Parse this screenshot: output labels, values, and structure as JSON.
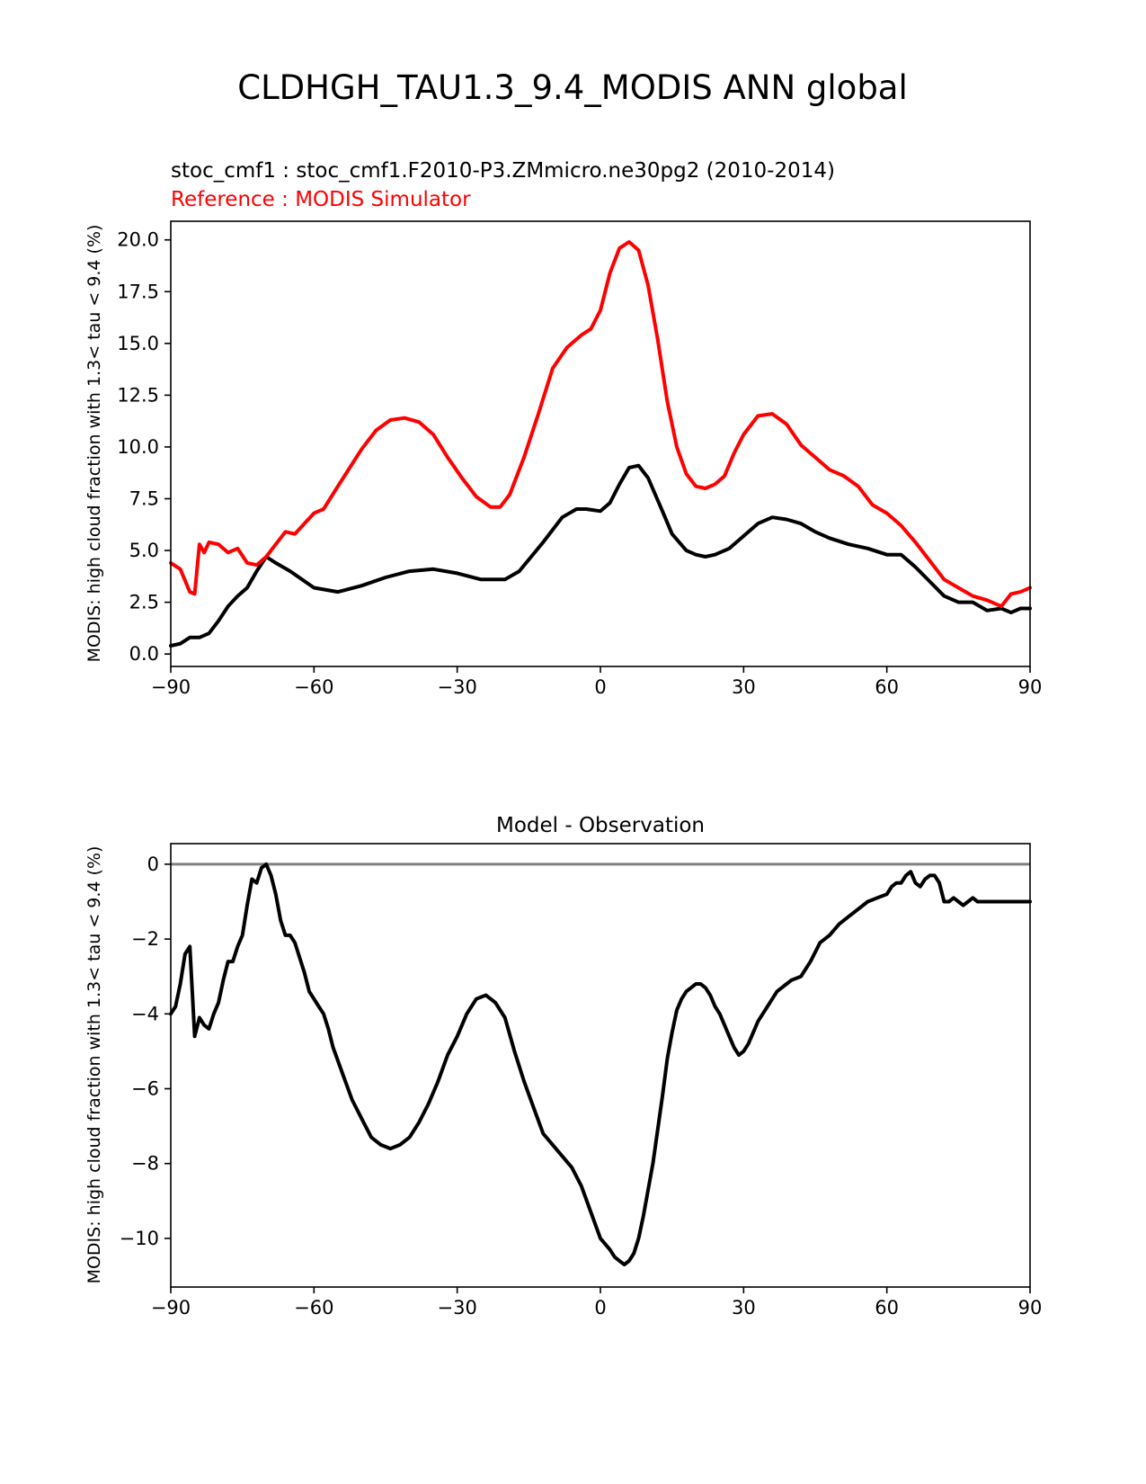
{
  "figure_title": "CLDHGH_TAU1.3_9.4_MODIS ANN global",
  "colors": {
    "test": "#000000",
    "reference": "#ff0000",
    "zero_line": "#808080",
    "axes": "#000000"
  },
  "chart_data": [
    {
      "type": "line",
      "title": "",
      "subtitle_test": "stoc_cmf1 : stoc_cmf1.F2010-P3.ZMmicro.ne30pg2 (2010-2014)",
      "subtitle_reference": "Reference : MODIS Simulator",
      "xlabel": "",
      "ylabel": "MODIS: high cloud fraction with 1.3< tau < 9.4 (%)",
      "xlim": [
        -90,
        90
      ],
      "ylim": [
        -0.6,
        20.9
      ],
      "xticks": [
        -90,
        -60,
        -30,
        0,
        30,
        60,
        90
      ],
      "xtick_labels": [
        "−90",
        "−60",
        "−30",
        "0",
        "30",
        "60",
        "90"
      ],
      "yticks": [
        0,
        2.5,
        5,
        7.5,
        10,
        12.5,
        15,
        17.5,
        20
      ],
      "ytick_labels": [
        "0.0",
        "2.5",
        "5.0",
        "7.5",
        "10.0",
        "12.5",
        "15.0",
        "17.5",
        "20.0"
      ],
      "grid": false,
      "series": [
        {
          "color": "#000000",
          "x": [
            -90,
            -88,
            -86,
            -84,
            -82,
            -80,
            -78,
            -76,
            -74,
            -72,
            -70,
            -68,
            -65,
            -60,
            -55,
            -50,
            -45,
            -40,
            -35,
            -30,
            -25,
            -20,
            -17,
            -12,
            -8,
            -5,
            -3,
            0,
            2,
            4,
            6,
            8,
            10,
            13,
            15,
            18,
            20,
            22,
            24,
            27,
            30,
            33,
            36,
            39,
            42,
            45,
            48,
            52,
            56,
            60,
            63,
            66,
            69,
            72,
            75,
            78,
            81,
            84,
            86,
            88,
            90
          ],
          "y": [
            0.4,
            0.5,
            0.8,
            0.8,
            1.0,
            1.6,
            2.3,
            2.8,
            3.2,
            4.0,
            4.7,
            4.4,
            4.0,
            3.2,
            3.0,
            3.3,
            3.7,
            4.0,
            4.1,
            3.9,
            3.6,
            3.6,
            4.0,
            5.4,
            6.6,
            7.0,
            7.0,
            6.9,
            7.3,
            8.2,
            9.0,
            9.1,
            8.5,
            6.9,
            5.8,
            5.0,
            4.8,
            4.7,
            4.8,
            5.1,
            5.7,
            6.3,
            6.6,
            6.5,
            6.3,
            5.9,
            5.6,
            5.3,
            5.1,
            4.8,
            4.8,
            4.2,
            3.5,
            2.8,
            2.5,
            2.5,
            2.1,
            2.2,
            2.0,
            2.2,
            2.2
          ]
        },
        {
          "color": "#ff0000",
          "x": [
            -90,
            -88,
            -86,
            -85,
            -84,
            -83,
            -82,
            -80,
            -78,
            -76,
            -74,
            -72,
            -70,
            -68,
            -66,
            -64,
            -62,
            -60,
            -58,
            -55,
            -50,
            -47,
            -44,
            -41,
            -38,
            -35,
            -32,
            -29,
            -26,
            -23,
            -21,
            -19,
            -16,
            -13,
            -10,
            -7,
            -4,
            -2,
            0,
            2,
            4,
            6,
            8,
            10,
            12,
            14,
            16,
            18,
            20,
            22,
            24,
            26,
            28,
            30,
            33,
            36,
            39,
            42,
            45,
            48,
            51,
            54,
            57,
            60,
            63,
            66,
            69,
            72,
            75,
            78,
            81,
            84,
            86,
            88,
            90
          ],
          "y": [
            4.4,
            4.1,
            3.0,
            2.9,
            5.3,
            4.9,
            5.4,
            5.3,
            4.9,
            5.1,
            4.4,
            4.3,
            4.7,
            5.3,
            5.9,
            5.8,
            6.3,
            6.8,
            7.0,
            8.1,
            9.9,
            10.8,
            11.3,
            11.4,
            11.2,
            10.6,
            9.5,
            8.5,
            7.6,
            7.1,
            7.1,
            7.7,
            9.5,
            11.6,
            13.8,
            14.8,
            15.4,
            15.7,
            16.6,
            18.4,
            19.6,
            19.9,
            19.5,
            17.8,
            15.2,
            12.2,
            10.0,
            8.7,
            8.1,
            8.0,
            8.2,
            8.6,
            9.7,
            10.6,
            11.5,
            11.6,
            11.1,
            10.1,
            9.5,
            8.9,
            8.6,
            8.1,
            7.2,
            6.8,
            6.2,
            5.4,
            4.5,
            3.6,
            3.2,
            2.8,
            2.6,
            2.3,
            2.9,
            3.0,
            3.2
          ]
        }
      ]
    },
    {
      "type": "line",
      "title": "Model - Observation",
      "xlabel": "",
      "ylabel": "MODIS: high cloud fraction with 1.3< tau < 9.4 (%)",
      "xlim": [
        -90,
        90
      ],
      "ylim": [
        -11.3,
        0.55
      ],
      "xticks": [
        -90,
        -60,
        -30,
        0,
        30,
        60,
        90
      ],
      "xtick_labels": [
        "−90",
        "−60",
        "−30",
        "0",
        "30",
        "60",
        "90"
      ],
      "yticks": [
        0,
        -2,
        -4,
        -6,
        -8,
        -10
      ],
      "ytick_labels": [
        "0",
        "−2",
        "−4",
        "−6",
        "−8",
        "−10"
      ],
      "grid": false,
      "zero_line": 0,
      "series": [
        {
          "color": "#000000",
          "x": [
            -90,
            -89,
            -88,
            -87,
            -86,
            -85,
            -84,
            -83,
            -82,
            -81,
            -80,
            -79,
            -78,
            -77,
            -76,
            -75,
            -74,
            -73,
            -72,
            -71,
            -70,
            -69,
            -68,
            -67,
            -66,
            -65,
            -64,
            -63,
            -62,
            -61,
            -60,
            -59,
            -58,
            -57,
            -56,
            -54,
            -52,
            -50,
            -48,
            -46,
            -44,
            -42,
            -40,
            -38,
            -36,
            -34,
            -32,
            -30,
            -28,
            -26,
            -24,
            -22,
            -20,
            -18,
            -16,
            -14,
            -12,
            -10,
            -8,
            -6,
            -4,
            -2,
            0,
            2,
            3,
            4,
            5,
            6,
            7,
            8,
            9,
            10,
            11,
            12,
            13,
            14,
            15,
            16,
            17,
            18,
            19,
            20,
            21,
            22,
            23,
            24,
            25,
            26,
            27,
            28,
            29,
            30,
            31,
            32,
            33,
            34,
            35,
            36,
            37,
            38,
            39,
            40,
            42,
            44,
            46,
            48,
            50,
            52,
            54,
            56,
            58,
            60,
            61,
            62,
            63,
            64,
            65,
            66,
            67,
            68,
            69,
            70,
            71,
            72,
            73,
            74,
            75,
            76,
            77,
            78,
            79,
            80,
            81,
            82,
            83,
            84,
            85,
            86,
            87,
            88,
            89,
            90
          ],
          "y": [
            -4.0,
            -3.8,
            -3.2,
            -2.4,
            -2.2,
            -4.6,
            -4.1,
            -4.3,
            -4.4,
            -4.0,
            -3.7,
            -3.1,
            -2.6,
            -2.6,
            -2.2,
            -1.9,
            -1.1,
            -0.4,
            -0.5,
            -0.1,
            0.0,
            -0.3,
            -0.8,
            -1.5,
            -1.9,
            -1.9,
            -2.1,
            -2.5,
            -2.9,
            -3.4,
            -3.6,
            -3.8,
            -4.0,
            -4.4,
            -4.9,
            -5.6,
            -6.3,
            -6.8,
            -7.3,
            -7.5,
            -7.6,
            -7.5,
            -7.3,
            -6.9,
            -6.4,
            -5.8,
            -5.1,
            -4.6,
            -4.0,
            -3.6,
            -3.5,
            -3.7,
            -4.1,
            -5.0,
            -5.8,
            -6.5,
            -7.2,
            -7.5,
            -7.8,
            -8.1,
            -8.6,
            -9.3,
            -10.0,
            -10.3,
            -10.5,
            -10.6,
            -10.7,
            -10.6,
            -10.4,
            -10.0,
            -9.4,
            -8.7,
            -8.0,
            -7.1,
            -6.2,
            -5.2,
            -4.5,
            -3.9,
            -3.6,
            -3.4,
            -3.3,
            -3.2,
            -3.2,
            -3.3,
            -3.5,
            -3.8,
            -4.0,
            -4.3,
            -4.6,
            -4.9,
            -5.1,
            -5.0,
            -4.8,
            -4.5,
            -4.2,
            -4.0,
            -3.8,
            -3.6,
            -3.4,
            -3.3,
            -3.2,
            -3.1,
            -3.0,
            -2.6,
            -2.1,
            -1.9,
            -1.6,
            -1.4,
            -1.2,
            -1.0,
            -0.9,
            -0.8,
            -0.6,
            -0.5,
            -0.5,
            -0.3,
            -0.2,
            -0.5,
            -0.6,
            -0.4,
            -0.3,
            -0.3,
            -0.5,
            -1.0,
            -1.0,
            -0.9,
            -1.0,
            -1.1,
            -1.0,
            -0.9,
            -1.0,
            -1.0,
            -1.0,
            -1.0,
            -1.0,
            -1.0,
            -1.0,
            -1.0,
            -1.0,
            -1.0,
            -1.0,
            -1.0
          ]
        }
      ]
    }
  ]
}
